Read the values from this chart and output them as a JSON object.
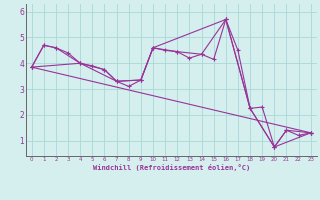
{
  "xlabel": "Windchill (Refroidissement éolien,°C)",
  "bg_color": "#d4efee",
  "line_color": "#993399",
  "grid_color": "#a8d8d8",
  "axis_bg": "#d4efee",
  "x_ticks": [
    0,
    1,
    2,
    3,
    4,
    5,
    6,
    7,
    8,
    9,
    10,
    11,
    12,
    13,
    14,
    15,
    16,
    17,
    18,
    19,
    20,
    21,
    22,
    23
  ],
  "y_ticks": [
    1,
    2,
    3,
    4,
    5,
    6
  ],
  "ylim": [
    0.4,
    6.3
  ],
  "xlim": [
    -0.5,
    23.5
  ],
  "series1": {
    "x": [
      0,
      1,
      2,
      3,
      4,
      5,
      6,
      7,
      8,
      9,
      10,
      11,
      12,
      13,
      14,
      15,
      16,
      17,
      18,
      19,
      20,
      21,
      22,
      23
    ],
    "y": [
      3.85,
      4.7,
      4.6,
      4.4,
      4.0,
      3.9,
      3.75,
      3.3,
      3.1,
      3.35,
      4.6,
      4.5,
      4.45,
      4.2,
      4.35,
      4.15,
      5.7,
      4.5,
      2.25,
      2.3,
      0.75,
      1.4,
      1.2,
      1.3
    ]
  },
  "series2": {
    "x": [
      0,
      4,
      7,
      9,
      10,
      16,
      18,
      20,
      23
    ],
    "y": [
      3.85,
      4.0,
      3.3,
      3.35,
      4.6,
      5.7,
      2.25,
      0.75,
      1.3
    ]
  },
  "series3": {
    "x": [
      0,
      23
    ],
    "y": [
      3.85,
      1.3
    ]
  },
  "series4": {
    "x": [
      0,
      1,
      2,
      4,
      6,
      7,
      9,
      10,
      12,
      14,
      16,
      18,
      20,
      21,
      23
    ],
    "y": [
      3.85,
      4.7,
      4.6,
      4.0,
      3.75,
      3.3,
      3.35,
      4.6,
      4.45,
      4.35,
      5.7,
      2.25,
      0.75,
      1.4,
      1.3
    ]
  }
}
